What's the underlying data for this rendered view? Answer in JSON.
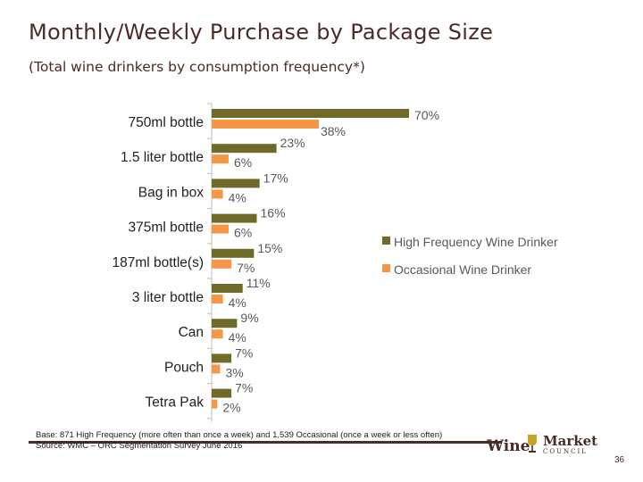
{
  "title": "Monthly/Weekly Purchase by Package Size",
  "subtitle": "(Total wine drinkers by consumption frequency*)",
  "colors": {
    "high": "#6f6a2a",
    "occasional": "#f79646",
    "title": "#4a2b25",
    "axis": "#bfbfbf",
    "footer_line": "#4a2b25"
  },
  "chart_data": {
    "type": "bar",
    "orientation": "horizontal",
    "categories": [
      "750ml bottle",
      "1.5 liter bottle",
      "Bag in box",
      "375ml bottle",
      "187ml bottle(s)",
      "3 liter bottle",
      "Can",
      "Pouch",
      "Tetra Pak"
    ],
    "series": [
      {
        "name": "High Frequency Wine Drinker",
        "values": [
          70,
          23,
          17,
          16,
          15,
          11,
          9,
          7,
          7
        ]
      },
      {
        "name": "Occasional Wine Drinker",
        "values": [
          38,
          6,
          4,
          6,
          7,
          4,
          4,
          3,
          2
        ]
      }
    ],
    "value_labels": {
      "high": [
        "70%",
        "23%",
        "17%",
        "16%",
        "15%",
        "11%",
        "9%",
        "7%",
        "7%"
      ],
      "occasional": [
        "38%",
        "6%",
        "4%",
        "6%",
        "7%",
        "4%",
        "4%",
        "3%",
        "2%"
      ]
    },
    "xlim": [
      0,
      70
    ],
    "legend": "right",
    "grid": false
  },
  "footer": {
    "note_line1": "Base: 871 High Frequency (more often than once a week) and 1,539 Occasional (once a week or less often)",
    "note_line2": "Source: WMC – ORC Segmentation Survey June 2016",
    "logo_wine": "Wine",
    "logo_market": "Market",
    "logo_council": "COUNCIL",
    "page_number": "36"
  }
}
